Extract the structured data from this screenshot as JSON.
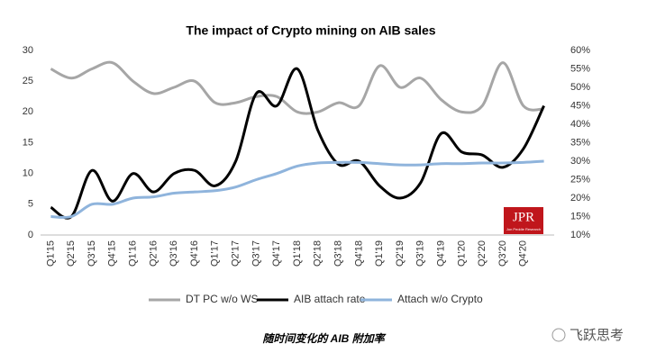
{
  "chart_data": {
    "type": "line",
    "title": "The impact of Crypto mining on AIB sales",
    "categories": [
      "Q1'15",
      "Q2'15",
      "Q3'15",
      "Q4'15",
      "Q1'16",
      "Q2'16",
      "Q3'16",
      "Q4'16",
      "Q1'17",
      "Q2'17",
      "Q3'17",
      "Q4'17",
      "Q1'18",
      "Q2'18",
      "Q3'18",
      "Q4'18",
      "Q1'19",
      "Q2'19",
      "Q3'19",
      "Q4'19",
      "Q1'20",
      "Q2'20",
      "Q3'20",
      "Q4'20",
      null
    ],
    "series": [
      {
        "name": "DT PC w/o WS",
        "color": "#a6a6a6",
        "values": [
          27,
          25.5,
          27,
          28,
          25,
          23,
          24,
          25,
          21.5,
          21.5,
          22.5,
          22.5,
          20,
          20,
          21.5,
          21,
          27.5,
          24,
          25.5,
          22,
          20,
          21,
          28,
          21,
          20.5
        ]
      },
      {
        "name": "AIB attach rate",
        "color": "#000000",
        "values": [
          4.5,
          3,
          10.5,
          5.5,
          10,
          7,
          10,
          10.5,
          8,
          12,
          23,
          21,
          27,
          17,
          11.5,
          12,
          8,
          6,
          8.5,
          16.5,
          13.5,
          13,
          11,
          14,
          21
        ]
      },
      {
        "name": "Attach w/o Crypto",
        "color": "#8fb4dc",
        "values": [
          3,
          3,
          5,
          5,
          6,
          6.2,
          6.8,
          7,
          7.2,
          7.8,
          9,
          10,
          11.2,
          11.7,
          11.8,
          11.8,
          11.6,
          11.4,
          11.4,
          11.6,
          11.6,
          11.7,
          11.7,
          11.8,
          12
        ]
      }
    ],
    "ylim": [
      0,
      30
    ],
    "yticks": [
      0,
      5,
      10,
      15,
      20,
      25,
      30
    ],
    "y2lim": [
      10,
      60
    ],
    "y2ticks": [
      {
        "value": 10,
        "label": "10%"
      },
      {
        "value": 15,
        "label": "15%"
      },
      {
        "value": 20,
        "label": "20%"
      },
      {
        "value": 25,
        "label": "25%"
      },
      {
        "value": 30,
        "label": "30%"
      },
      {
        "value": 35,
        "label": "35%"
      },
      {
        "value": 40,
        "label": "40%"
      },
      {
        "value": 45,
        "label": "45%"
      },
      {
        "value": 50,
        "label": "50%"
      },
      {
        "value": 55,
        "label": "55%"
      },
      {
        "value": 60,
        "label": "60%"
      }
    ],
    "legend": "bottom",
    "logo": "JPR",
    "logo_sub": "Jon Peddie Research",
    "caption": "随时间变化的 AIB 附加率",
    "watermark": "飞跃思考"
  }
}
